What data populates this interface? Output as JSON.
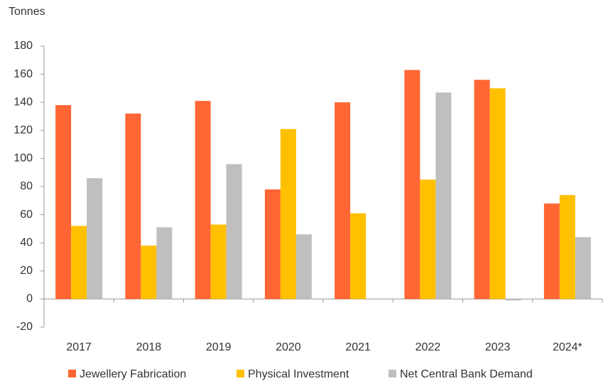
{
  "chart_data": {
    "type": "bar",
    "y_axis_label": "Tonnes",
    "categories": [
      "2017",
      "2018",
      "2019",
      "2020",
      "2021",
      "2022",
      "2023",
      "2024*"
    ],
    "series": [
      {
        "name": "Jewellery Fabrication",
        "color": "#ff6633",
        "values": [
          138,
          132,
          141,
          78,
          140,
          163,
          156,
          68
        ]
      },
      {
        "name": "Physical Investment",
        "color": "#ffc000",
        "values": [
          52,
          38,
          53,
          121,
          61,
          85,
          150,
          74
        ]
      },
      {
        "name": "Net Central Bank Demand",
        "color": "#bfbfbf",
        "values": [
          86,
          51,
          96,
          46,
          0,
          147,
          -1,
          44
        ]
      }
    ],
    "ylim": [
      -20,
      180
    ],
    "yticks": [
      -20,
      0,
      20,
      40,
      60,
      80,
      100,
      120,
      140,
      160,
      180
    ],
    "grid": false,
    "legend": "bottom"
  }
}
